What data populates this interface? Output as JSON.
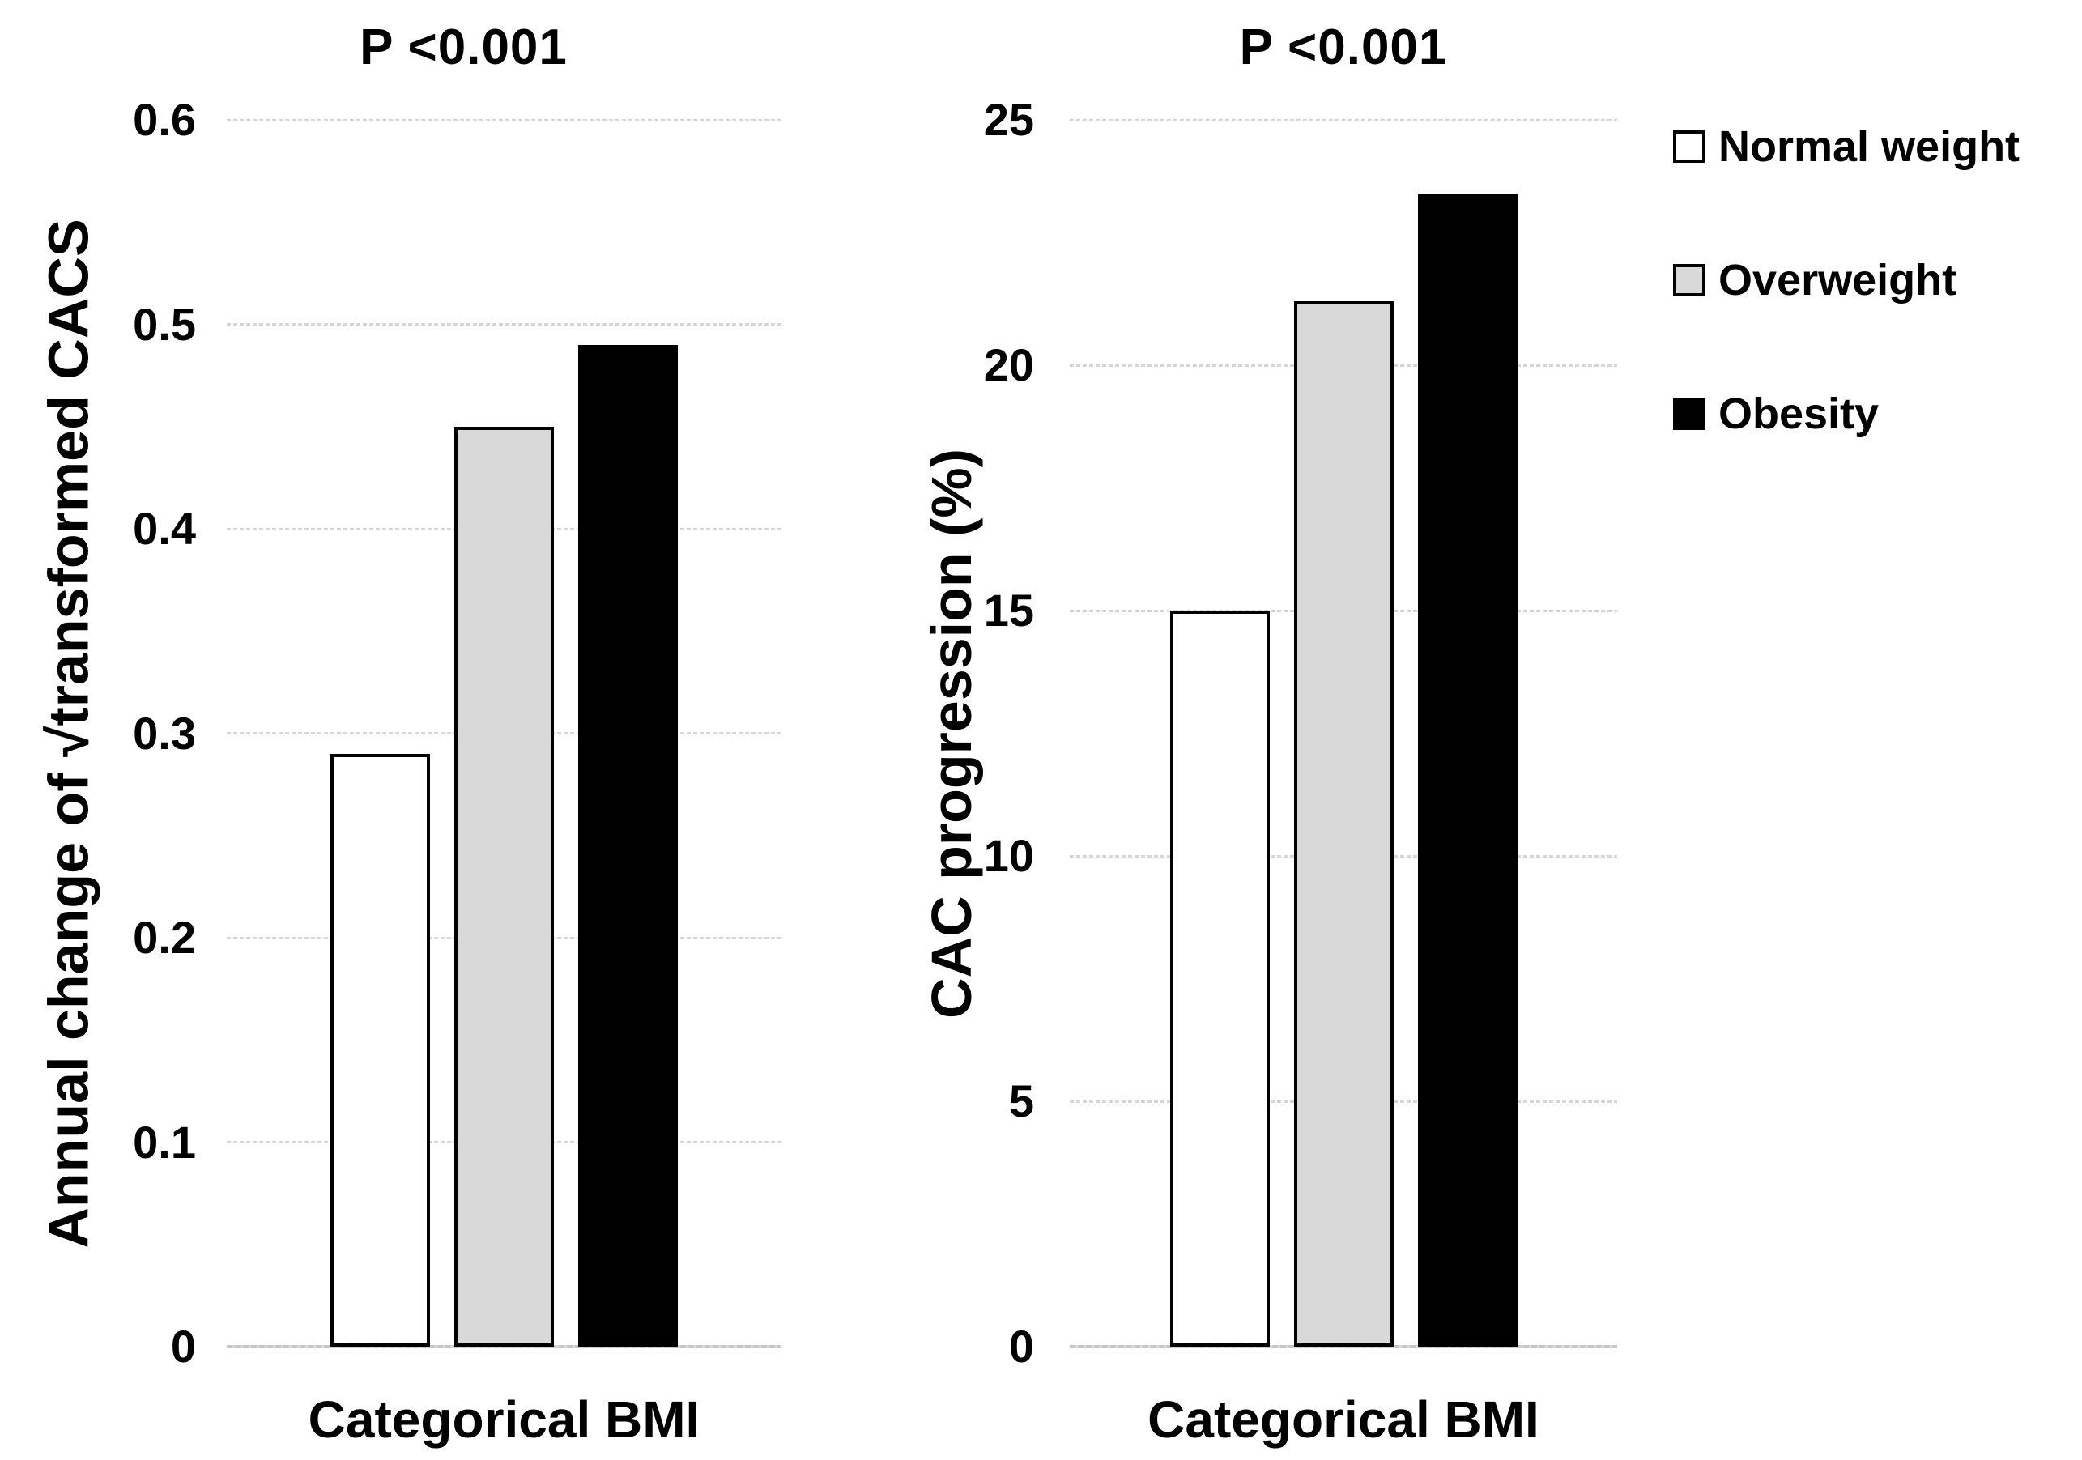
{
  "figure": {
    "background": "#ffffff",
    "text_color": "#000000"
  },
  "colors": {
    "gridline": "#d6d6d6",
    "axis_baseline": "#c7c7c7",
    "bar_border": "#000000",
    "normal_weight_fill": "#ffffff",
    "overweight_fill": "#d9d9d9",
    "obesity_fill": "#000000"
  },
  "legend": {
    "items": [
      {
        "label": "Normal weight",
        "fill": "#ffffff"
      },
      {
        "label": "Overweight",
        "fill": "#d9d9d9"
      },
      {
        "label": "Obesity",
        "fill": "#000000"
      }
    ]
  },
  "chart_data": [
    {
      "type": "bar",
      "title": "P <0.001",
      "ylabel": "Annual change of √transformed CACS",
      "xlabel": "Categorical BMI",
      "categories": [
        "Normal weight",
        "Overweight",
        "Obesity"
      ],
      "values": [
        0.29,
        0.45,
        0.49
      ],
      "ylim": [
        0,
        0.6
      ],
      "yticks": [
        0,
        0.1,
        0.2,
        0.3,
        0.4,
        0.5,
        0.6
      ],
      "ytick_labels": [
        "0",
        "0.1",
        "0.2",
        "0.3",
        "0.4",
        "0.5",
        "0.6"
      ],
      "grid": true,
      "legend_position": "right",
      "bar_fills": [
        "#ffffff",
        "#d9d9d9",
        "#000000"
      ]
    },
    {
      "type": "bar",
      "title": "P <0.001",
      "ylabel": "CAC progression (%)",
      "xlabel": "Categorical BMI",
      "categories": [
        "Normal weight",
        "Overweight",
        "Obesity"
      ],
      "values": [
        15,
        21.3,
        23.5
      ],
      "ylim": [
        0,
        25
      ],
      "yticks": [
        0,
        5,
        10,
        15,
        20,
        25
      ],
      "ytick_labels": [
        "0",
        "5",
        "10",
        "15",
        "20",
        "25"
      ],
      "grid": true,
      "legend_position": "right",
      "bar_fills": [
        "#ffffff",
        "#d9d9d9",
        "#000000"
      ]
    }
  ]
}
